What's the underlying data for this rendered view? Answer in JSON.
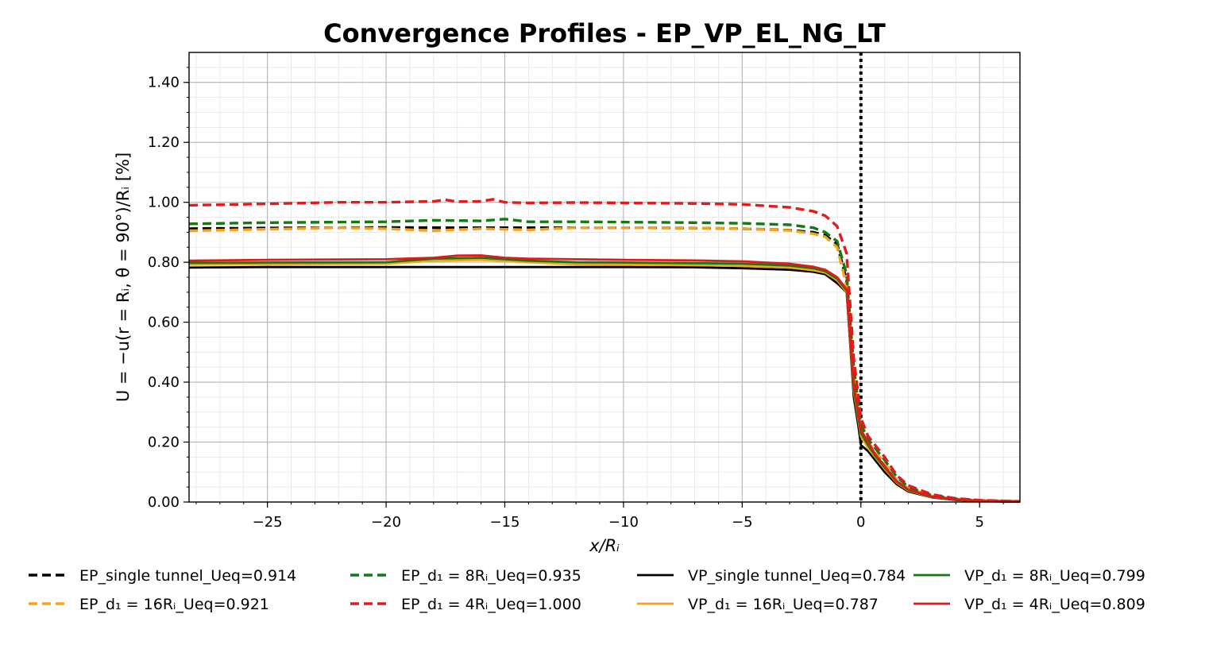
{
  "chart_data": {
    "type": "line",
    "title": "Convergence Profiles - EP_VP_EL_NG_LT",
    "xlabel": "x/Rᵢ",
    "ylabel": "U = −u(r = Rᵢ, θ = 90°)/Rᵢ [%]",
    "xlim": [
      -28.3,
      6.7
    ],
    "ylim": [
      0,
      1.5
    ],
    "xticks": [
      -25,
      -20,
      -15,
      -10,
      -5,
      0,
      5
    ],
    "xtick_labels": [
      "−25",
      "−20",
      "−15",
      "−10",
      "−5",
      "0",
      "5"
    ],
    "yticks": [
      0,
      0.2,
      0.4,
      0.6,
      0.8,
      1.0,
      1.2,
      1.4
    ],
    "ytick_labels": [
      "0.00",
      "0.20",
      "0.40",
      "0.60",
      "0.80",
      "1.00",
      "1.20",
      "1.40"
    ],
    "grid": true,
    "vertical_reference_line": {
      "x": 0,
      "style": "dotted",
      "color": "#000000"
    },
    "legend_position": "below",
    "series": [
      {
        "name": "EP_single tunnel_Ueq=0.914",
        "color": "#000000",
        "style": "dashed",
        "x": [
          -28.3,
          -25,
          -20,
          -17,
          -15,
          -12,
          -10,
          -7,
          -5,
          -3,
          -2,
          -1.5,
          -1,
          -0.6,
          -0.3,
          0,
          0.3,
          0.6,
          1,
          1.5,
          2,
          3,
          4,
          5,
          6.7
        ],
        "y": [
          0.912,
          0.914,
          0.916,
          0.915,
          0.915,
          0.915,
          0.915,
          0.914,
          0.912,
          0.907,
          0.9,
          0.89,
          0.86,
          0.74,
          0.42,
          0.23,
          0.19,
          0.16,
          0.12,
          0.07,
          0.04,
          0.017,
          0.008,
          0.004,
          0.002
        ]
      },
      {
        "name": "VP_single tunnel_Ueq=0.784",
        "color": "#000000",
        "style": "solid",
        "x": [
          -28.3,
          -25,
          -20,
          -15,
          -10,
          -7,
          -5,
          -3,
          -2,
          -1.5,
          -1,
          -0.6,
          -0.3,
          -0.1,
          0,
          0.3,
          0.6,
          1,
          1.5,
          2,
          3,
          4,
          5,
          6.7
        ],
        "y": [
          0.782,
          0.784,
          0.784,
          0.784,
          0.784,
          0.783,
          0.78,
          0.775,
          0.768,
          0.76,
          0.73,
          0.7,
          0.35,
          0.25,
          0.19,
          0.17,
          0.14,
          0.1,
          0.06,
          0.035,
          0.015,
          0.007,
          0.003,
          0.001
        ]
      },
      {
        "name": "EP_d₁ = 16Rᵢ_Ueq=0.921",
        "color": "#f5a31a",
        "style": "dashed",
        "x": [
          -28.3,
          -25,
          -22,
          -20,
          -18,
          -16,
          -14,
          -12,
          -10,
          -7,
          -5,
          -3,
          -2,
          -1.5,
          -1,
          -0.6,
          -0.3,
          0,
          0.3,
          0.6,
          1,
          1.5,
          2,
          3,
          4,
          5,
          6.7
        ],
        "y": [
          0.905,
          0.91,
          0.915,
          0.912,
          0.905,
          0.912,
          0.908,
          0.915,
          0.915,
          0.914,
          0.912,
          0.906,
          0.895,
          0.885,
          0.85,
          0.72,
          0.42,
          0.24,
          0.2,
          0.17,
          0.13,
          0.075,
          0.045,
          0.02,
          0.01,
          0.005,
          0.002
        ]
      },
      {
        "name": "VP_d₁ = 16Rᵢ_Ueq=0.787",
        "color": "#f5a31a",
        "style": "solid",
        "x": [
          -28.3,
          -25,
          -20,
          -18,
          -16,
          -14,
          -12,
          -10,
          -7,
          -5,
          -3,
          -2,
          -1.5,
          -1,
          -0.6,
          -0.3,
          0,
          0.3,
          0.6,
          1,
          1.5,
          2,
          3,
          4,
          5,
          6.7
        ],
        "y": [
          0.792,
          0.793,
          0.795,
          0.805,
          0.808,
          0.8,
          0.793,
          0.792,
          0.79,
          0.788,
          0.782,
          0.773,
          0.765,
          0.74,
          0.7,
          0.37,
          0.22,
          0.18,
          0.15,
          0.11,
          0.065,
          0.038,
          0.016,
          0.008,
          0.004,
          0.002
        ]
      },
      {
        "name": "EP_d₁ = 8Rᵢ_Ueq=0.935",
        "color": "#117a11",
        "style": "dashed",
        "x": [
          -28.3,
          -25,
          -22,
          -20,
          -18,
          -16,
          -15,
          -14,
          -12,
          -10,
          -7,
          -5,
          -3,
          -2,
          -1.5,
          -1,
          -0.6,
          -0.3,
          0,
          0.3,
          0.6,
          1,
          1.5,
          2,
          3,
          4,
          5,
          6.7
        ],
        "y": [
          0.928,
          0.932,
          0.934,
          0.935,
          0.94,
          0.938,
          0.944,
          0.935,
          0.935,
          0.934,
          0.932,
          0.93,
          0.925,
          0.915,
          0.9,
          0.87,
          0.76,
          0.45,
          0.26,
          0.21,
          0.18,
          0.14,
          0.085,
          0.05,
          0.022,
          0.011,
          0.005,
          0.002
        ]
      },
      {
        "name": "VP_d₁ = 8Rᵢ_Ueq=0.799",
        "color": "#117a11",
        "style": "solid",
        "x": [
          -28.3,
          -25,
          -20,
          -18,
          -16,
          -14,
          -12,
          -10,
          -7,
          -5,
          -3,
          -2,
          -1.5,
          -1,
          -0.6,
          -0.3,
          0,
          0.3,
          0.6,
          1,
          1.5,
          2,
          3,
          4,
          5,
          6.7
        ],
        "y": [
          0.798,
          0.799,
          0.8,
          0.812,
          0.815,
          0.805,
          0.8,
          0.799,
          0.797,
          0.795,
          0.789,
          0.78,
          0.77,
          0.745,
          0.705,
          0.38,
          0.23,
          0.19,
          0.155,
          0.115,
          0.068,
          0.04,
          0.017,
          0.008,
          0.004,
          0.002
        ]
      },
      {
        "name": "EP_d₁ = 4Rᵢ_Ueq=1.000",
        "color": "#e31a1c",
        "style": "dashed",
        "x": [
          -28.3,
          -25,
          -22,
          -20,
          -18,
          -17.5,
          -17,
          -16,
          -15.5,
          -15,
          -14,
          -12,
          -10,
          -7,
          -5,
          -3,
          -2,
          -1.5,
          -1,
          -0.6,
          -0.3,
          0,
          0.3,
          0.6,
          1,
          1.5,
          2,
          3,
          4,
          5,
          6.7
        ],
        "y": [
          0.99,
          0.995,
          1.0,
          1.0,
          1.003,
          1.008,
          1.002,
          1.003,
          1.01,
          1.0,
          0.998,
          0.999,
          0.998,
          0.996,
          0.993,
          0.983,
          0.97,
          0.955,
          0.92,
          0.83,
          0.48,
          0.28,
          0.22,
          0.19,
          0.15,
          0.09,
          0.055,
          0.025,
          0.012,
          0.006,
          0.002
        ]
      },
      {
        "name": "VP_d₁ = 4Rᵢ_Ueq=0.809",
        "color": "#e31a1c",
        "style": "solid",
        "x": [
          -28.3,
          -25,
          -20,
          -18,
          -17,
          -16,
          -15,
          -14,
          -12,
          -10,
          -7,
          -5,
          -3,
          -2,
          -1.5,
          -1,
          -0.6,
          -0.3,
          0,
          0.3,
          0.6,
          1,
          1.5,
          2,
          3,
          4,
          5,
          6.7
        ],
        "y": [
          0.805,
          0.808,
          0.81,
          0.815,
          0.822,
          0.823,
          0.815,
          0.812,
          0.81,
          0.808,
          0.806,
          0.803,
          0.795,
          0.785,
          0.775,
          0.75,
          0.71,
          0.39,
          0.24,
          0.2,
          0.16,
          0.12,
          0.07,
          0.042,
          0.018,
          0.009,
          0.004,
          0.002
        ]
      }
    ],
    "legend_order": [
      0,
      2,
      4,
      6,
      1,
      3,
      5,
      7
    ]
  }
}
